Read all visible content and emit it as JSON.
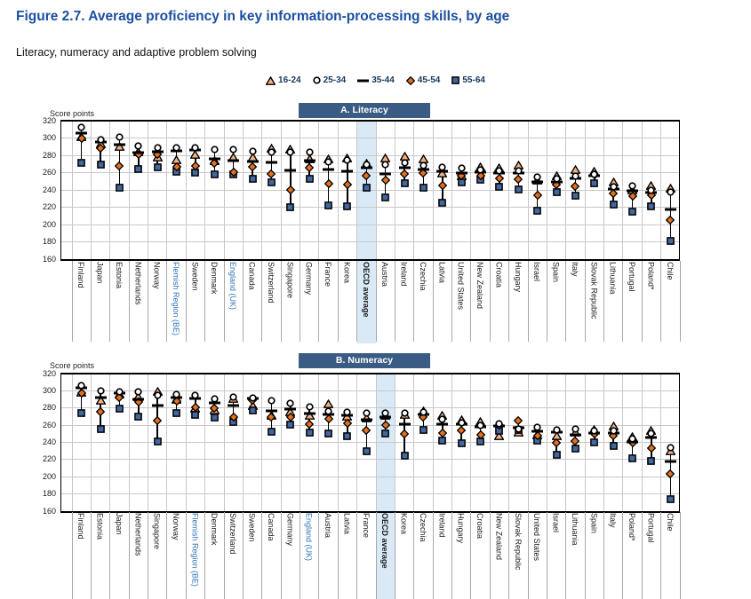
{
  "figure": {
    "title": "Figure 2.7. Average proficiency in key information-processing skills, by age",
    "subtitle": "Literacy, numeracy and adaptive problem solving",
    "axis_label": "Score points"
  },
  "legend": [
    {
      "label": "16-24",
      "marker": "triangle"
    },
    {
      "label": "25-34",
      "marker": "circle"
    },
    {
      "label": "35-44",
      "marker": "dash"
    },
    {
      "label": "45-54",
      "marker": "diamond"
    },
    {
      "label": "55-64",
      "marker": "square"
    }
  ],
  "colors": {
    "title_blue": "#1C4FA0",
    "banner_bg": "#3A5C84",
    "banner_text": "#FFFFFF",
    "highlight_band": "#D9EAF6",
    "region_label_blue": "#2E74B6",
    "grid_line": "#C8C8C8",
    "separator_line": "#A8A8A8",
    "marker_triangle": "#F5B183",
    "marker_diamond": "#E8701A",
    "marker_square": "#44689E",
    "marker_circle": "#FFFFFF",
    "marker_dash": "#000000",
    "axis_border": "#000000"
  },
  "chart_data": [
    {
      "type": "scatter",
      "title": "A. Literacy",
      "ylabel": "Score points",
      "ylim": [
        160,
        320
      ],
      "yticks": [
        160,
        180,
        200,
        220,
        240,
        260,
        280,
        300,
        320
      ],
      "grid": true,
      "legend_position": "top",
      "highlight_category": "OECD average",
      "special_label_categories": [
        "Flemish Region (BE)",
        "England (UK)"
      ],
      "categories": [
        "Finland",
        "Japan",
        "Estonia",
        "Netherlands",
        "Norway",
        "Flemish Region (BE)",
        "Sweden",
        "Denmark",
        "England (UK)",
        "Canada",
        "Switzerland",
        "Singapore",
        "Germany",
        "France",
        "Korea",
        "OECD average",
        "Austria",
        "Ireland",
        "Czechia",
        "Latvia",
        "United States",
        "New Zealand",
        "Croatia",
        "Hungary",
        "Israel",
        "Spain",
        "Italy",
        "Slovak Republic",
        "Lithuania",
        "Portugal",
        "Poland*",
        "Chile"
      ],
      "series": [
        {
          "name": "16-24",
          "marker": "triangle",
          "values": [
            302,
            293,
            290,
            284,
            278,
            275,
            281,
            274,
            278,
            278,
            288,
            287,
            276,
            276,
            277,
            271,
            277,
            279,
            276,
            259,
            256,
            267,
            266,
            269,
            251,
            256,
            264,
            262,
            249,
            240,
            245,
            242
          ]
        },
        {
          "name": "25-34",
          "marker": "circle",
          "values": [
            312,
            298,
            301,
            291,
            289,
            289,
            289,
            287,
            287,
            285,
            284,
            284,
            284,
            272,
            274,
            269,
            269,
            271,
            268,
            266,
            265,
            263,
            262,
            262,
            255,
            253,
            256,
            258,
            244,
            245,
            239,
            237
          ]
        },
        {
          "name": "35-44",
          "marker": "dash",
          "values": [
            306,
            295,
            292,
            283,
            284,
            285,
            286,
            276,
            274,
            273,
            272,
            263,
            274,
            264,
            262,
            266,
            258,
            266,
            264,
            262,
            260,
            261,
            260,
            259,
            249,
            249,
            253,
            256,
            241,
            239,
            237,
            217
          ]
        },
        {
          "name": "45-54",
          "marker": "diamond",
          "values": [
            299,
            288,
            268,
            281,
            281,
            267,
            268,
            271,
            261,
            267,
            258,
            240,
            266,
            247,
            246,
            256,
            251,
            258,
            259,
            245,
            256,
            256,
            253,
            252,
            234,
            246,
            244,
            257,
            236,
            233,
            234,
            205
          ]
        },
        {
          "name": "55-64",
          "marker": "square",
          "values": [
            271,
            269,
            243,
            264,
            266,
            261,
            260,
            258,
            258,
            253,
            249,
            220,
            253,
            222,
            221,
            243,
            231,
            248,
            243,
            225,
            249,
            252,
            244,
            241,
            216,
            237,
            233,
            248,
            223,
            215,
            221,
            181
          ]
        }
      ]
    },
    {
      "type": "scatter",
      "title": "B. Numeracy",
      "ylabel": "Score points",
      "ylim": [
        160,
        320
      ],
      "yticks": [
        160,
        180,
        200,
        220,
        240,
        260,
        280,
        300,
        320
      ],
      "grid": true,
      "legend_position": "top",
      "highlight_category": "OECD average",
      "special_label_categories": [
        "Flemish Region (BE)",
        "England (UK)"
      ],
      "categories": [
        "Finland",
        "Estonia",
        "Japan",
        "Netherlands",
        "Singapore",
        "Norway",
        "Flemish Region (BE)",
        "Denmark",
        "Switzerland",
        "Sweden",
        "Canada",
        "Germany",
        "England (UK)",
        "Austria",
        "Latvia",
        "France",
        "OECD average",
        "Korea",
        "Czechia",
        "Ireland",
        "Hungary",
        "Croatia",
        "New Zealand",
        "Slovak Republic",
        "United States",
        "Israel",
        "Lithuania",
        "Spain",
        "Italy",
        "Poland*",
        "Portugal",
        "Chile"
      ],
      "series": [
        {
          "name": "16-24",
          "marker": "triangle",
          "values": [
            298,
            289,
            296,
            293,
            299,
            290,
            280,
            278,
            291,
            283,
            272,
            276,
            272,
            285,
            270,
            268,
            271,
            273,
            277,
            271,
            266,
            264,
            248,
            252,
            249,
            248,
            252,
            255,
            259,
            247,
            254,
            230
          ]
        },
        {
          "name": "25-34",
          "marker": "circle",
          "values": [
            306,
            300,
            299,
            299,
            295,
            296,
            295,
            291,
            293,
            292,
            289,
            285,
            281,
            276,
            275,
            274,
            274,
            274,
            275,
            267,
            263,
            260,
            262,
            256,
            258,
            254,
            255,
            253,
            253,
            244,
            250,
            234
          ]
        },
        {
          "name": "35-44",
          "marker": "dash",
          "values": [
            303,
            292,
            297,
            290,
            283,
            292,
            291,
            286,
            283,
            291,
            277,
            279,
            274,
            273,
            272,
            266,
            269,
            261,
            273,
            261,
            261,
            258,
            259,
            257,
            253,
            252,
            249,
            251,
            251,
            241,
            246,
            218
          ]
        },
        {
          "name": "45-54",
          "marker": "diamond",
          "values": [
            297,
            276,
            292,
            287,
            265,
            288,
            281,
            280,
            269,
            289,
            269,
            269,
            261,
            267,
            262,
            254,
            260,
            250,
            269,
            251,
            254,
            249,
            260,
            265,
            248,
            239,
            242,
            250,
            248,
            240,
            233,
            203
          ]
        },
        {
          "name": "55-64",
          "marker": "square",
          "values": [
            274,
            255,
            279,
            270,
            241,
            274,
            272,
            269,
            264,
            277,
            252,
            261,
            251,
            250,
            247,
            230,
            250,
            225,
            254,
            242,
            239,
            241,
            253,
            254,
            242,
            226,
            233,
            240,
            236,
            221,
            218,
            174
          ]
        }
      ]
    }
  ]
}
